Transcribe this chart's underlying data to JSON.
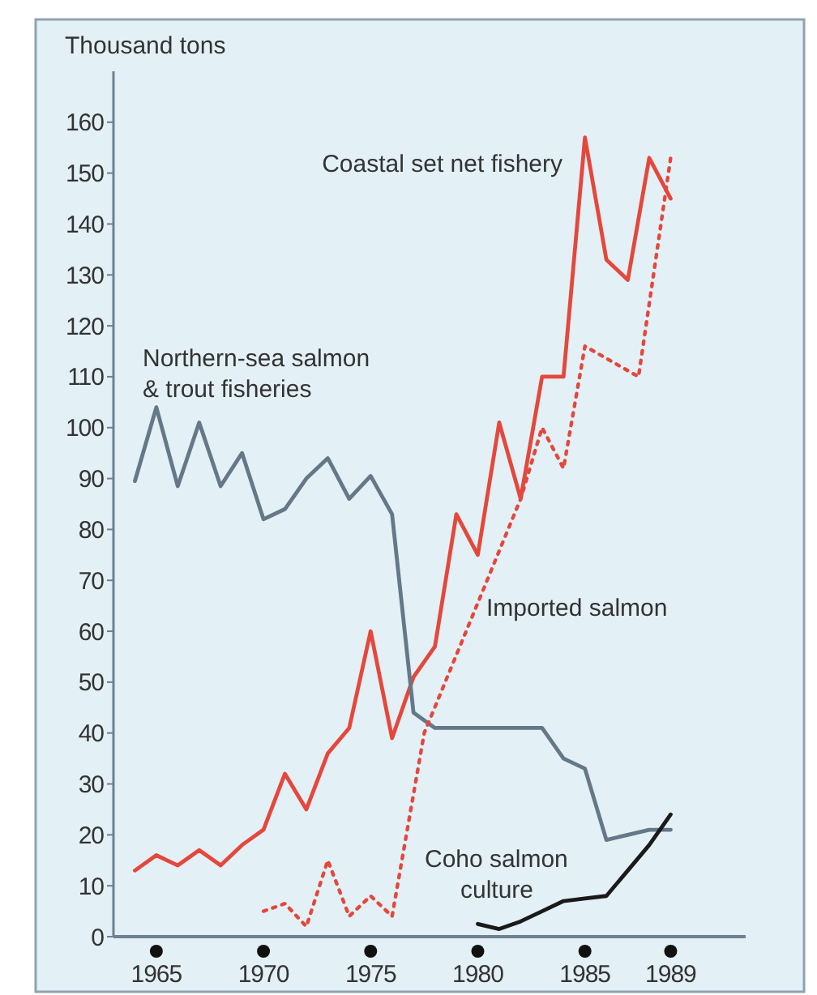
{
  "chart_data": {
    "type": "line",
    "ylabel": "Thousand tons",
    "xlim": [
      1963,
      1992.5
    ],
    "xticks": [
      1965,
      1970,
      1975,
      1980,
      1985,
      1989
    ],
    "ylim": [
      0,
      170
    ],
    "yticks": [
      0,
      10,
      20,
      30,
      40,
      50,
      60,
      70,
      80,
      90,
      100,
      110,
      120,
      130,
      140,
      150,
      160
    ],
    "grid": false,
    "marker": "none",
    "series": [
      {
        "name": "Coastal set net fishery",
        "color": "#e5473c",
        "line_style": "solid",
        "x": [
          1964,
          1965,
          1966,
          1967,
          1968,
          1969,
          1970,
          1971,
          1972,
          1973,
          1974,
          1975,
          1976,
          1977,
          1978,
          1979,
          1980,
          1981,
          1982,
          1983,
          1984,
          1985,
          1986,
          1987,
          1988,
          1989
        ],
        "values": [
          13,
          16,
          14,
          17,
          14,
          18,
          21,
          32,
          25,
          36,
          41,
          60,
          39,
          51,
          57,
          83,
          75,
          101,
          86,
          110,
          110,
          157,
          133,
          129,
          153,
          145
        ]
      },
      {
        "name": "Northern-sea salmon & trout fisheries",
        "color": "#647887",
        "line_style": "solid",
        "x": [
          1964,
          1965,
          1966,
          1967,
          1968,
          1969,
          1970,
          1971,
          1972,
          1973,
          1974,
          1975,
          1976,
          1977,
          1978,
          1979,
          1980,
          1981,
          1982,
          1983,
          1984,
          1985,
          1986,
          1987,
          1988,
          1989
        ],
        "values": [
          89.5,
          104,
          88.5,
          101,
          88.5,
          95,
          82,
          84,
          90,
          94,
          86,
          90.5,
          83,
          44,
          41,
          41,
          41,
          41,
          41,
          41,
          35,
          33,
          19,
          20,
          21,
          21
        ]
      },
      {
        "name": "Imported salmon",
        "color": "#e5473c",
        "line_style": "dotted",
        "x": [
          1970,
          1971,
          1972,
          1973,
          1974,
          1975,
          1976,
          1977.5,
          1982,
          1983,
          1984,
          1985,
          1987.5,
          1989
        ],
        "values": [
          5,
          6.5,
          2,
          15,
          4,
          8,
          4,
          40,
          86,
          100,
          92,
          116,
          110,
          153
        ]
      },
      {
        "name": "Coho salmon culture",
        "color": "#1a1a1a",
        "line_style": "solid",
        "x": [
          1980,
          1981,
          1982,
          1983,
          1984,
          1985,
          1986,
          1987,
          1988,
          1989
        ],
        "values": [
          2.5,
          1.5,
          3,
          5,
          7,
          7.5,
          8,
          13,
          18,
          24
        ]
      }
    ]
  }
}
